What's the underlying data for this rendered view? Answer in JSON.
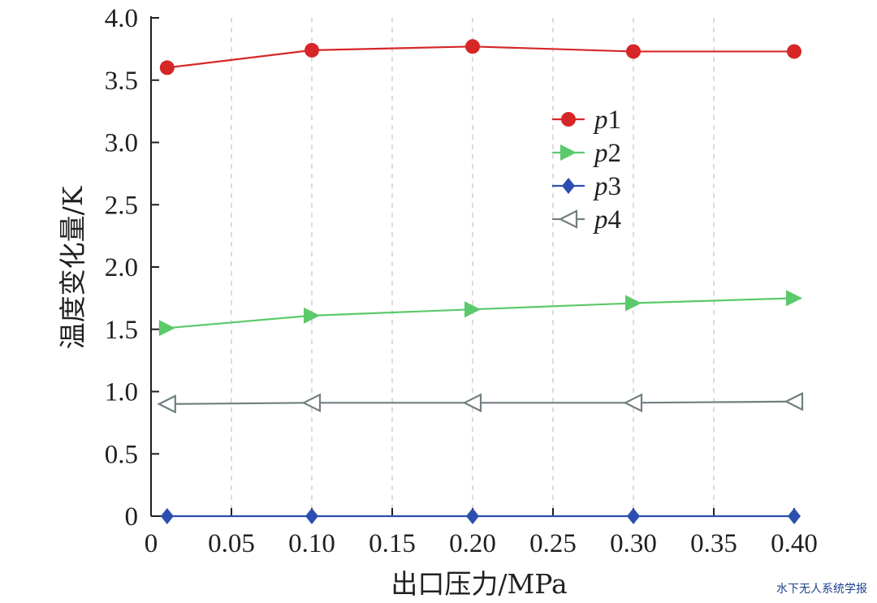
{
  "chart_data": {
    "type": "line",
    "xlabel": "出口压力/MPa",
    "ylabel": "温度变化量/K",
    "xlim": [
      0,
      0.4
    ],
    "ylim": [
      0,
      4.0
    ],
    "x_ticks": [
      "0",
      "0.05",
      "0.10",
      "0.15",
      "0.20",
      "0.25",
      "0.30",
      "0.35",
      "0.40"
    ],
    "y_ticks": [
      "0",
      "0.5",
      "1.0",
      "1.5",
      "2.0",
      "2.5",
      "3.0",
      "3.5",
      "4.0"
    ],
    "x": [
      0.01,
      0.1,
      0.2,
      0.3,
      0.4
    ],
    "series": [
      {
        "name": "p1",
        "color": "#d62728",
        "marker": "circle",
        "values": [
          3.6,
          3.74,
          3.77,
          3.73,
          3.73
        ]
      },
      {
        "name": "p2",
        "color": "#5cc96b",
        "marker": "triangle-right",
        "values": [
          1.51,
          1.61,
          1.66,
          1.71,
          1.75
        ]
      },
      {
        "name": "p3",
        "color": "#2b4fb0",
        "marker": "diamond",
        "values": [
          0.0,
          0.0,
          0.0,
          0.0,
          0.0
        ]
      },
      {
        "name": "p4",
        "color": "#6f7f80",
        "marker": "triangle-left-open",
        "values": [
          0.9,
          0.91,
          0.91,
          0.91,
          0.92
        ]
      }
    ],
    "legend_position": "upper-right"
  },
  "watermark": "水下无人系统学报"
}
